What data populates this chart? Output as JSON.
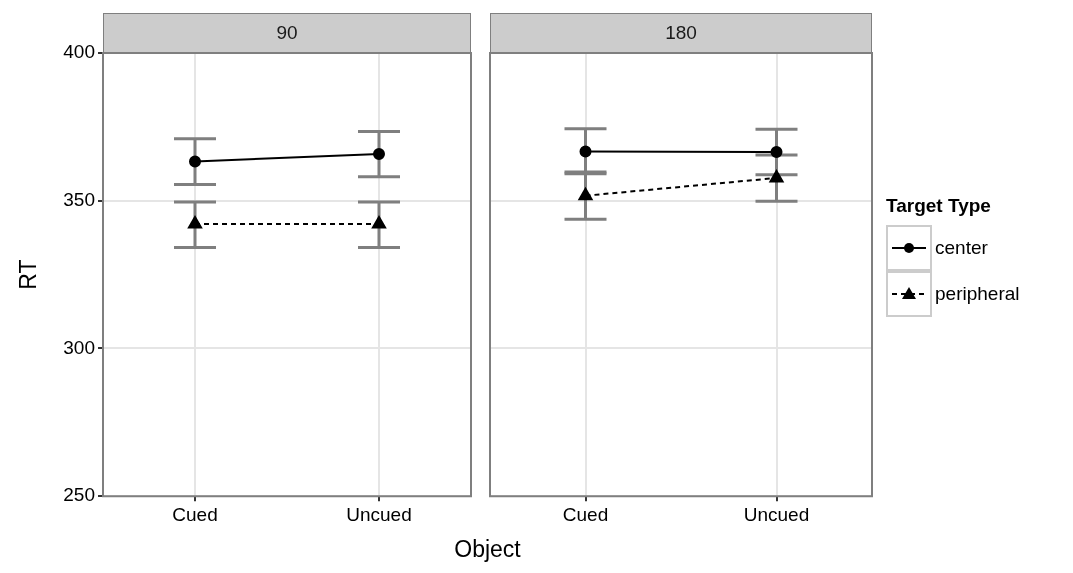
{
  "chart_data": [
    {
      "type": "line",
      "title": "90",
      "xlabel": "Object",
      "ylabel": "RT",
      "categories": [
        "Cued",
        "Uncued"
      ],
      "ylim": [
        250,
        400
      ],
      "yticks": [
        250,
        300,
        350,
        400
      ],
      "grid": true,
      "legend": false,
      "series": [
        {
          "color": "#000000",
          "marker": "circle",
          "line_style": "solid",
          "values": [
            363.3,
            365.8
          ],
          "errors": [
            [
              355.5,
              371.0
            ],
            [
              358.1,
              373.4
            ]
          ]
        },
        {
          "color": "#000000",
          "marker": "triangle",
          "line_style": "dashed",
          "values": [
            342.1,
            342.1
          ],
          "errors": [
            [
              334.2,
              349.6
            ],
            [
              334.2,
              349.6
            ]
          ]
        }
      ]
    },
    {
      "type": "line",
      "title": "180",
      "categories": [
        "Cued",
        "Uncued"
      ],
      "ylim": [
        250,
        400
      ],
      "yticks": [
        250,
        300,
        350,
        400
      ],
      "tick_labels": "x",
      "grid": true,
      "legend": "right",
      "legend_title": "Target Type",
      "series": [
        {
          "name": "center",
          "color": "#000000",
          "marker": "circle",
          "line_style": "solid",
          "values": [
            366.7,
            366.5
          ],
          "errors": [
            [
              359.1,
              374.4
            ],
            [
              358.8,
              374.2
            ]
          ]
        },
        {
          "name": "peripheral",
          "color": "#000000",
          "marker": "triangle",
          "line_style": "dashed",
          "values": [
            351.7,
            357.7
          ],
          "errors": [
            [
              343.7,
              359.7
            ],
            [
              349.8,
              365.5
            ]
          ]
        }
      ]
    }
  ]
}
